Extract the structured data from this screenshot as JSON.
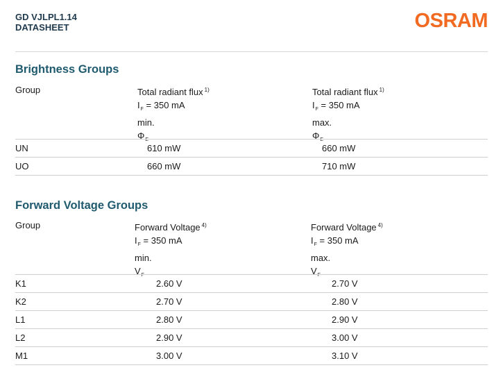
{
  "header": {
    "doc_code": "GD VJLPL1.14",
    "doc_type": "DATASHEET",
    "logo_text": "OSRAM"
  },
  "brightness": {
    "title": "Brightness Groups",
    "col_group": "Group",
    "col_min": {
      "line1": "Total radiant flux",
      "note": "1)",
      "current_symbol": "I",
      "current_sub": "F",
      "current_value": "= 350 mA",
      "bound": "min.",
      "symbol": "Φ",
      "symbol_sub": "E"
    },
    "col_max": {
      "line1": "Total radiant flux",
      "note": "1)",
      "current_symbol": "I",
      "current_sub": "F",
      "current_value": "= 350 mA",
      "bound": "max.",
      "symbol": "Φ",
      "symbol_sub": "E"
    },
    "rows": [
      {
        "group": "UN",
        "min": "610 mW",
        "max": "660 mW"
      },
      {
        "group": "UO",
        "min": "660 mW",
        "max": "710 mW"
      }
    ]
  },
  "voltage": {
    "title": "Forward Voltage Groups",
    "col_group": "Group",
    "col_min": {
      "line1": "Forward Voltage",
      "note": "4)",
      "current_symbol": "I",
      "current_sub": "F",
      "current_value": "= 350 mA",
      "bound": "min.",
      "symbol": "V",
      "symbol_sub": "F"
    },
    "col_max": {
      "line1": "Forward Voltage",
      "note": "4)",
      "current_symbol": "I",
      "current_sub": "F",
      "current_value": "= 350 mA",
      "bound": "max.",
      "symbol": "V",
      "symbol_sub": "F"
    },
    "rows": [
      {
        "group": "K1",
        "min": "2.60 V",
        "max": "2.70 V"
      },
      {
        "group": "K2",
        "min": "2.70 V",
        "max": "2.80 V"
      },
      {
        "group": "L1",
        "min": "2.80 V",
        "max": "2.90 V"
      },
      {
        "group": "L2",
        "min": "2.90 V",
        "max": "3.00 V"
      },
      {
        "group": "M1",
        "min": "3.00 V",
        "max": "3.10 V"
      }
    ]
  }
}
